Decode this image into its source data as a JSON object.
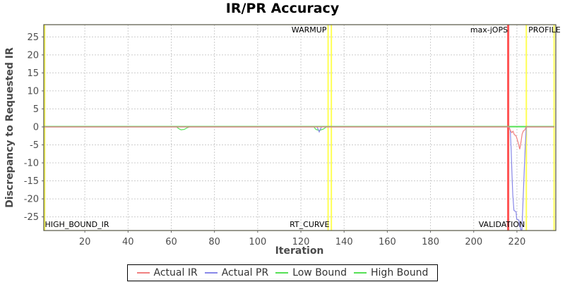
{
  "title": "IR/PR Accuracy",
  "chart_data": {
    "type": "line",
    "title": "IR/PR Accuracy",
    "xlabel": "Iteration",
    "ylabel": "Discrepancy to Requested IR",
    "xlim": [
      1,
      238
    ],
    "ylim": [
      -28.8,
      28.4
    ],
    "x_ticks": [
      20,
      40,
      60,
      80,
      100,
      120,
      140,
      160,
      180,
      200,
      220
    ],
    "y_ticks": [
      -25,
      -20,
      -15,
      -10,
      -5,
      0,
      5,
      10,
      15,
      20,
      25
    ],
    "grid": true,
    "legend_position": "bottom",
    "colors": {
      "actual_ir": "#f08080",
      "actual_pr": "#8888e8",
      "bounds_green": "#55e055",
      "marker_red": "#ff5555",
      "marker_yellow": "#ffff55",
      "gridline": "#cccccc",
      "plot_border": "#555544"
    },
    "series": [
      {
        "name": "Actual IR",
        "color": "#f08080",
        "points": [
          [
            1,
            0
          ],
          [
            216.3,
            0
          ],
          [
            217,
            -1
          ],
          [
            217.6,
            -1.6
          ],
          [
            218.2,
            -1.2
          ],
          [
            218.8,
            -2.2
          ],
          [
            219.5,
            -2.4
          ],
          [
            220,
            -3.2
          ],
          [
            220.6,
            -4.5
          ],
          [
            221.3,
            -6.2
          ],
          [
            221.9,
            -4.2
          ],
          [
            222.4,
            -2
          ],
          [
            223,
            -1.1
          ],
          [
            223.6,
            -0.9
          ],
          [
            224.3,
            0
          ],
          [
            237.3,
            0
          ]
        ]
      },
      {
        "name": "Actual PR",
        "color": "#8888e8",
        "points": [
          [
            1,
            0
          ],
          [
            127.5,
            0
          ],
          [
            128.5,
            -1.4
          ],
          [
            129.5,
            0
          ],
          [
            216.4,
            0
          ],
          [
            216.9,
            -1
          ],
          [
            217.3,
            -6
          ],
          [
            217.7,
            -13
          ],
          [
            218.1,
            -19
          ],
          [
            218.6,
            -23.2
          ],
          [
            219.6,
            -23.6
          ],
          [
            219.9,
            -25.6
          ],
          [
            220.9,
            -25.9
          ],
          [
            221.2,
            -27.6
          ],
          [
            221.5,
            -27.8
          ],
          [
            221.8,
            -28.6
          ],
          [
            222.3,
            -28.6
          ],
          [
            222.6,
            -24
          ],
          [
            223.2,
            -15
          ],
          [
            223.8,
            -6
          ],
          [
            224.35,
            0
          ],
          [
            237.3,
            0
          ]
        ]
      },
      {
        "name": "Low Bound",
        "color": "#55e055",
        "points": [
          [
            1,
            0
          ],
          [
            62.5,
            0
          ],
          [
            63.5,
            -0.5
          ],
          [
            64.5,
            -0.8
          ],
          [
            66,
            -0.7
          ],
          [
            67.5,
            -0.2
          ],
          [
            68.5,
            0
          ],
          [
            126,
            0
          ],
          [
            127,
            -0.7
          ],
          [
            128.5,
            -1
          ],
          [
            130.5,
            -0.6
          ],
          [
            131.8,
            0
          ],
          [
            237.3,
            0
          ]
        ]
      },
      {
        "name": "High Bound",
        "color": "#55e055",
        "points": [
          [
            1,
            0
          ],
          [
            237.3,
            0
          ]
        ]
      }
    ],
    "markers": [
      {
        "x": 1.4,
        "color": "#ffff55",
        "width": 2,
        "kind": "region-edge"
      },
      {
        "x": 132.6,
        "color": "#ffff55",
        "width": 2,
        "kind": "warmup-end"
      },
      {
        "x": 134.1,
        "color": "#ffff55",
        "width": 2,
        "kind": "rt-curve-start"
      },
      {
        "x": 215.95,
        "color": "#ff5555",
        "width": 3,
        "kind": "max-jops"
      },
      {
        "x": 224.35,
        "color": "#ffff55",
        "width": 2,
        "kind": "profile-start"
      },
      {
        "x": 237.2,
        "color": "#ffff55",
        "width": 2,
        "kind": "region-edge"
      }
    ],
    "annotations": [
      {
        "text": "WARMUP",
        "x": 131.9,
        "valign": "top",
        "halign": "right"
      },
      {
        "text": "max-jOPS",
        "x": 215.8,
        "valign": "top",
        "halign": "right"
      },
      {
        "text": "PROFILE",
        "x": 225.3,
        "valign": "top",
        "halign": "left"
      },
      {
        "text": "HIGH_BOUND_IR",
        "x": 1.5,
        "valign": "bottom",
        "halign": "left"
      },
      {
        "text": "RT_CURVE",
        "x": 133.2,
        "valign": "bottom",
        "halign": "right"
      },
      {
        "text": "VALIDATION",
        "x": 223.7,
        "valign": "bottom",
        "halign": "right"
      }
    ]
  }
}
